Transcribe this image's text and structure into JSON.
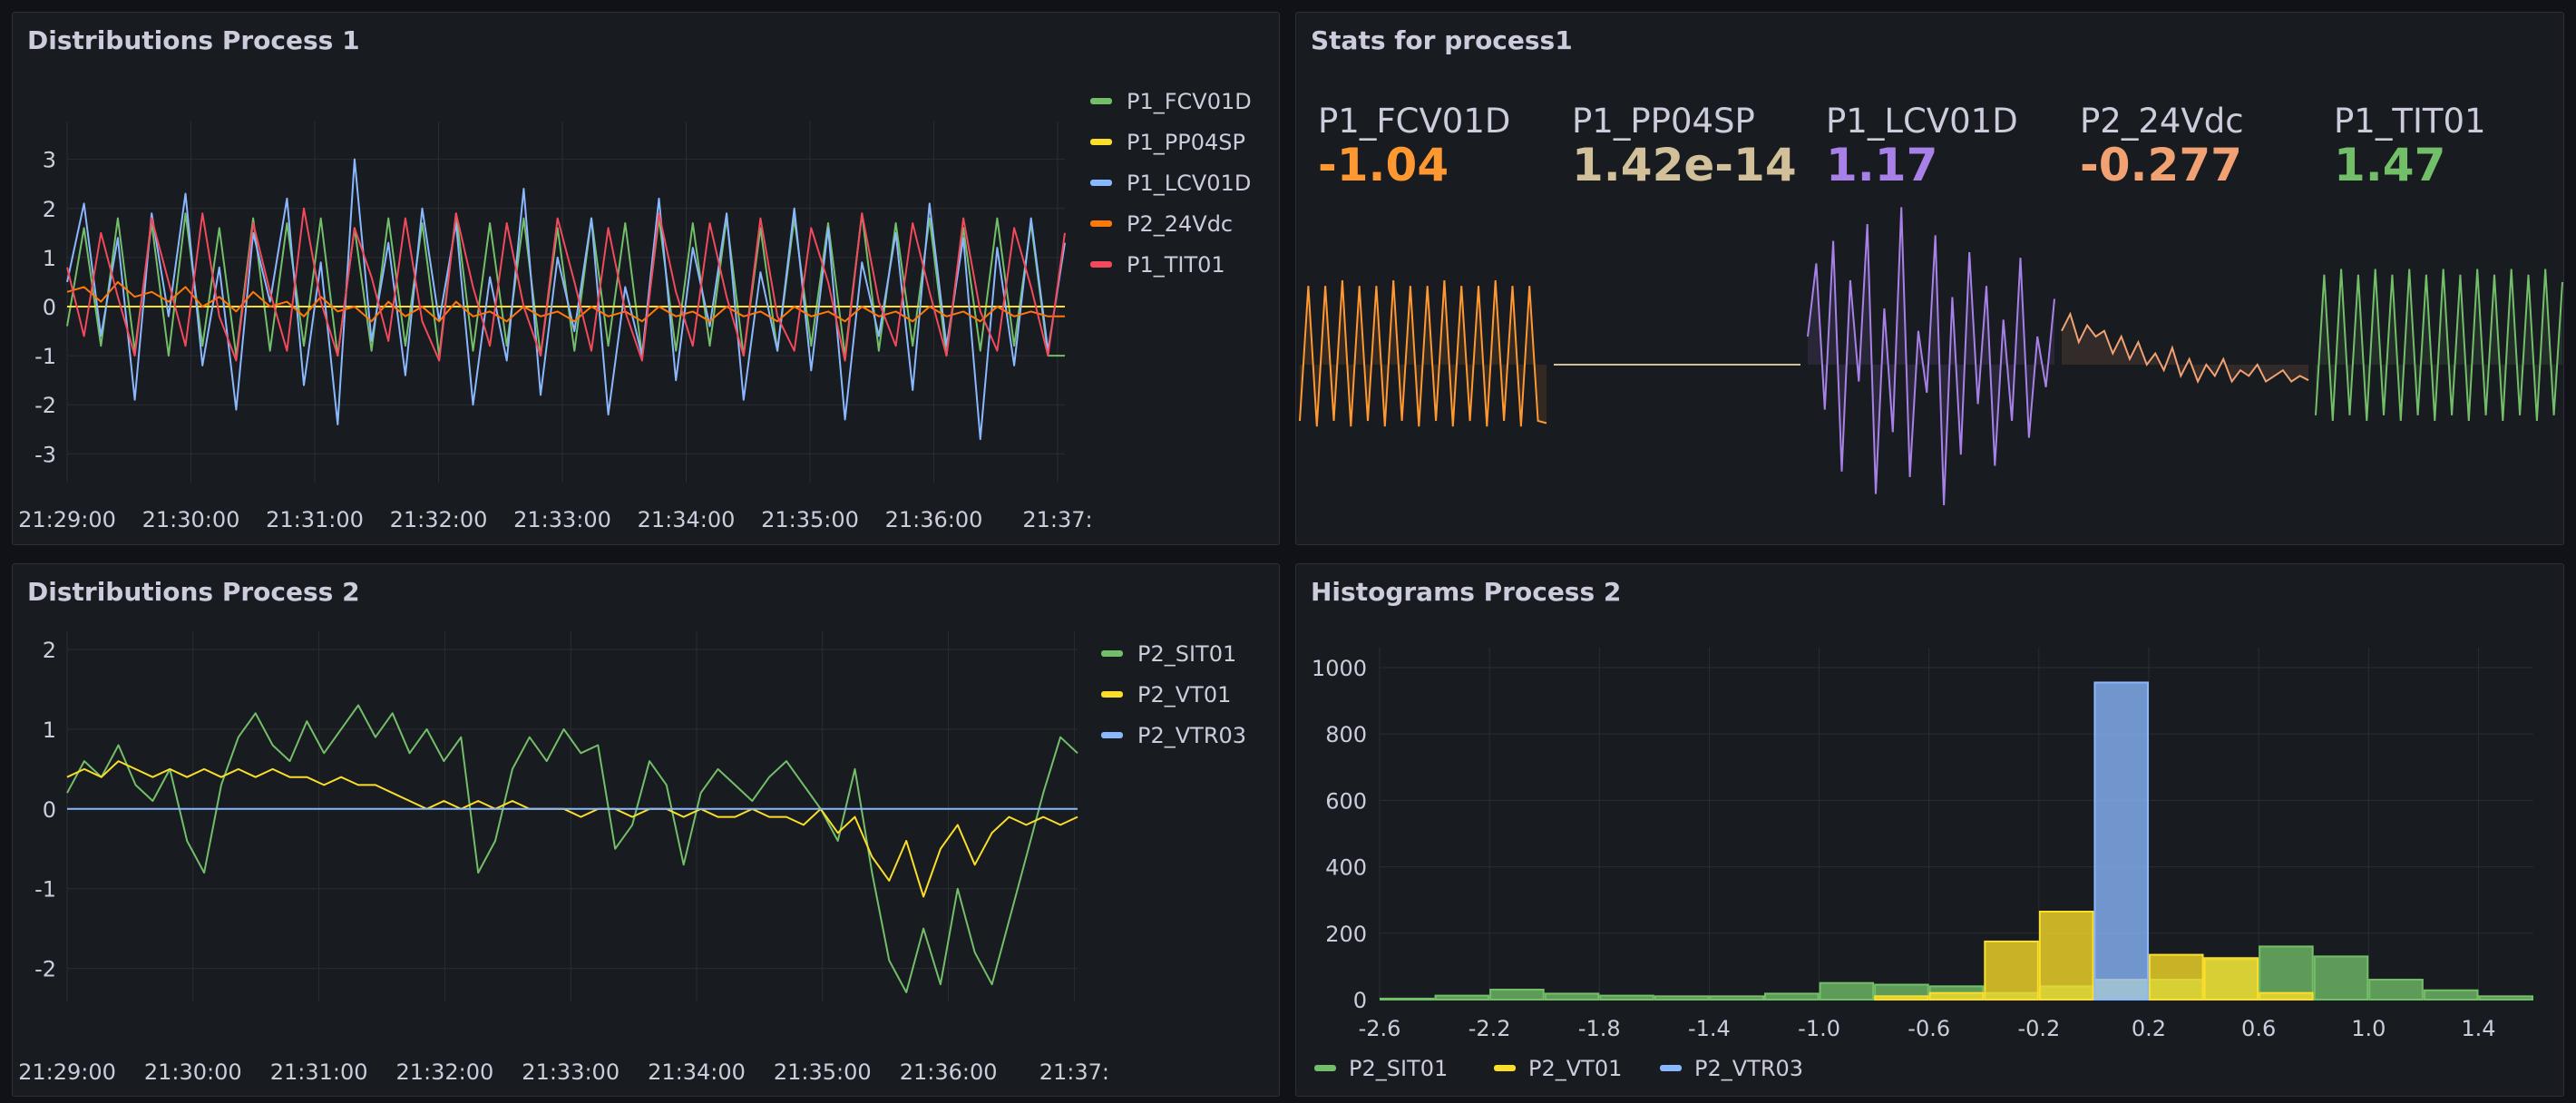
{
  "panels": {
    "p1": {
      "title": "Distributions Process 1",
      "legend": [
        {
          "name": "P1_FCV01D",
          "color": "#73bf69"
        },
        {
          "name": "P1_PP04SP",
          "color": "#fade2a"
        },
        {
          "name": "P1_LCV01D",
          "color": "#8ab8ff"
        },
        {
          "name": "P2_24Vdc",
          "color": "#ff780a"
        },
        {
          "name": "P1_TIT01",
          "color": "#f2495c"
        }
      ]
    },
    "stats": {
      "title": "Stats for process1",
      "items": [
        {
          "name": "P1_FCV01D",
          "value": "-1.04",
          "color": "#ff9830"
        },
        {
          "name": "P1_PP04SP",
          "value": "1.42e-14",
          "color": "#d1c09a"
        },
        {
          "name": "P1_LCV01D",
          "value": "1.17",
          "color": "#a781e8"
        },
        {
          "name": "P2_24Vdc",
          "value": "-0.277",
          "color": "#f2a272"
        },
        {
          "name": "P1_TIT01",
          "value": "1.47",
          "color": "#73bf69"
        }
      ]
    },
    "p2": {
      "title": "Distributions Process 2",
      "legend": [
        {
          "name": "P2_SIT01",
          "color": "#73bf69"
        },
        {
          "name": "P2_VT01",
          "color": "#fade2a"
        },
        {
          "name": "P2_VTR03",
          "color": "#8ab8ff"
        }
      ]
    },
    "hist": {
      "title": "Histograms Process 2",
      "legend": [
        {
          "name": "P2_SIT01",
          "color": "#73bf69"
        },
        {
          "name": "P2_VT01",
          "color": "#fade2a"
        },
        {
          "name": "P2_VTR03",
          "color": "#8ab8ff"
        }
      ]
    }
  },
  "chart_data": [
    {
      "type": "line",
      "title": "Distributions Process 1",
      "x_ticks": [
        "21:29:00",
        "21:30:00",
        "21:31:00",
        "21:32:00",
        "21:33:00",
        "21:34:00",
        "21:35:00",
        "21:36:00",
        "21:37:"
      ],
      "y_ticks": [
        -3,
        -2,
        -1,
        0,
        1,
        2,
        3
      ],
      "ylim": [
        -3.4,
        3.4
      ],
      "series": [
        {
          "name": "P1_FCV01D",
          "color": "#73bf69",
          "values": [
            -0.4,
            1.6,
            -0.8,
            1.8,
            -0.9,
            1.7,
            -1.0,
            1.9,
            -0.8,
            1.6,
            -1.0,
            1.8,
            -0.9,
            1.7,
            -0.8,
            1.8,
            -1.0,
            1.6,
            -0.9,
            1.8,
            -0.8,
            1.7,
            -1.0,
            1.9,
            -0.9,
            1.7,
            -0.8,
            1.8,
            -1.0,
            1.6,
            -0.9,
            1.8,
            -0.8,
            1.7,
            -1.0,
            1.8,
            -0.9,
            1.7,
            -0.8,
            1.8,
            -1.0,
            1.6,
            -0.9,
            1.8,
            -0.8,
            1.7,
            -1.0,
            1.9,
            -0.9,
            1.7,
            -0.8,
            1.8,
            -1.0,
            1.6,
            -0.9,
            1.8,
            -0.8,
            1.7,
            -1.0,
            -1.0
          ]
        },
        {
          "name": "P1_PP04SP",
          "color": "#fade2a",
          "values": [
            0,
            0,
            0,
            0,
            0,
            0,
            0,
            0,
            0,
            0,
            0,
            0,
            0,
            0,
            0,
            0,
            0,
            0,
            0,
            0,
            0,
            0,
            0,
            0,
            0,
            0,
            0,
            0,
            0,
            0,
            0,
            0,
            0,
            0,
            0,
            0,
            0,
            0,
            0,
            0,
            0,
            0,
            0,
            0,
            0,
            0,
            0,
            0,
            0,
            0,
            0,
            0,
            0,
            0,
            0,
            0,
            0,
            0,
            0,
            0
          ]
        },
        {
          "name": "P1_LCV01D",
          "color": "#8ab8ff",
          "values": [
            0.5,
            2.1,
            -0.6,
            1.4,
            -1.9,
            1.9,
            -0.2,
            2.3,
            -1.2,
            0.8,
            -2.1,
            1.5,
            0.1,
            2.2,
            -1.6,
            0.9,
            -2.4,
            3.0,
            -0.7,
            1.3,
            -1.4,
            2.0,
            -0.3,
            1.7,
            -2.0,
            0.6,
            -1.1,
            2.4,
            -1.8,
            1.0,
            -0.5,
            1.8,
            -2.2,
            0.4,
            -1.0,
            2.2,
            -1.5,
            1.2,
            -0.4,
            1.9,
            -1.9,
            0.7,
            -0.9,
            2.0,
            -1.3,
            1.6,
            -2.3,
            0.9,
            -0.6,
            1.5,
            -1.7,
            2.1,
            -0.8,
            1.4,
            -2.7,
            1.2,
            -1.2,
            1.8,
            -0.9,
            1.3
          ]
        },
        {
          "name": "P2_24Vdc",
          "color": "#ff780a",
          "values": [
            0.3,
            0.4,
            0.1,
            0.5,
            0.2,
            0.3,
            0.1,
            0.4,
            0.0,
            0.2,
            -0.1,
            0.3,
            0.0,
            0.1,
            -0.2,
            0.2,
            -0.1,
            0.0,
            -0.3,
            0.1,
            -0.2,
            0.0,
            -0.3,
            0.1,
            -0.2,
            -0.1,
            -0.3,
            0.0,
            -0.2,
            -0.1,
            -0.3,
            0.0,
            -0.2,
            -0.1,
            -0.3,
            0.0,
            -0.2,
            -0.1,
            -0.3,
            0.0,
            -0.2,
            -0.1,
            -0.3,
            0.0,
            -0.2,
            -0.1,
            -0.3,
            0.0,
            -0.2,
            -0.1,
            -0.3,
            0.0,
            -0.2,
            -0.1,
            -0.3,
            0.0,
            -0.2,
            -0.1,
            -0.2,
            -0.2
          ]
        },
        {
          "name": "P1_TIT01",
          "color": "#f2495c",
          "values": [
            0.8,
            -0.6,
            1.5,
            0.2,
            -1.0,
            1.8,
            0.5,
            -0.8,
            1.9,
            -0.2,
            -1.1,
            1.7,
            0.3,
            -0.9,
            2.0,
            0.1,
            -1.0,
            1.6,
            0.6,
            -0.7,
            1.8,
            -0.3,
            -1.1,
            1.9,
            0.4,
            -0.8,
            1.7,
            0.0,
            -1.0,
            1.8,
            0.5,
            -0.9,
            1.6,
            -0.1,
            -1.1,
            1.9,
            0.3,
            -0.8,
            1.7,
            0.2,
            -1.0,
            1.8,
            -0.2,
            -0.9,
            1.6,
            0.5,
            -1.1,
            1.9,
            0.1,
            -0.8,
            1.7,
            0.3,
            -1.0,
            1.8,
            -0.1,
            -0.9,
            1.6,
            0.4,
            -1.0,
            1.5
          ]
        }
      ]
    },
    {
      "type": "line",
      "title": "Stats for process1",
      "series": [
        {
          "name": "P1_FCV01D",
          "color": "#ff9830",
          "values": [
            -1.0,
            1.4,
            -1.1,
            1.4,
            -1.0,
            1.5,
            -1.1,
            1.4,
            -1.0,
            1.4,
            -1.1,
            1.5,
            -1.0,
            1.4,
            -1.1,
            1.4,
            -1.0,
            1.5,
            -1.1,
            1.4,
            -1.0,
            1.4,
            -1.1,
            1.5,
            -1.0,
            1.4,
            -1.1,
            1.4,
            -1.0,
            -1.04
          ]
        },
        {
          "name": "P1_PP04SP",
          "color": "#d1c09a",
          "values": [
            0,
            0,
            0,
            0,
            0,
            0,
            0,
            0,
            0,
            0,
            0,
            0,
            0,
            0,
            0,
            0,
            0,
            0,
            0,
            0,
            0,
            0,
            0,
            0,
            0,
            0,
            0,
            0,
            0,
            0
          ]
        },
        {
          "name": "P1_LCV01D",
          "color": "#a781e8",
          "values": [
            0.5,
            1.8,
            -0.8,
            2.2,
            -1.9,
            1.5,
            -0.3,
            2.5,
            -2.3,
            1.0,
            -1.2,
            2.8,
            -2.0,
            0.6,
            -0.5,
            2.3,
            -2.5,
            1.2,
            -1.6,
            2.0,
            -0.7,
            1.4,
            -1.8,
            0.8,
            -1.0,
            1.9,
            -1.3,
            0.5,
            -0.4,
            1.17
          ]
        },
        {
          "name": "P2_24Vdc",
          "color": "#f2a272",
          "values": [
            0.6,
            0.9,
            0.4,
            0.7,
            0.5,
            0.6,
            0.2,
            0.5,
            0.1,
            0.4,
            0.0,
            0.2,
            -0.1,
            0.3,
            -0.2,
            0.1,
            -0.3,
            0.0,
            -0.2,
            0.1,
            -0.3,
            -0.1,
            -0.2,
            0.0,
            -0.3,
            -0.2,
            -0.1,
            -0.3,
            -0.2,
            -0.277
          ]
        },
        {
          "name": "P1_TIT01",
          "color": "#73bf69",
          "values": [
            -0.9,
            1.6,
            -1.0,
            1.7,
            -0.9,
            1.6,
            -1.0,
            1.7,
            -0.9,
            1.6,
            -1.0,
            1.7,
            -0.9,
            1.6,
            -1.0,
            1.7,
            -0.9,
            1.6,
            -1.0,
            1.7,
            -0.9,
            1.6,
            -1.0,
            1.7,
            -0.9,
            1.6,
            -1.0,
            1.7,
            -0.9,
            1.47
          ]
        }
      ]
    },
    {
      "type": "line",
      "title": "Distributions Process 2",
      "x_ticks": [
        "21:29:00",
        "21:30:00",
        "21:31:00",
        "21:32:00",
        "21:33:00",
        "21:34:00",
        "21:35:00",
        "21:36:00",
        "21:37:"
      ],
      "y_ticks": [
        -2,
        -1,
        0,
        1,
        2
      ],
      "ylim": [
        -2.3,
        2.0
      ],
      "series": [
        {
          "name": "P2_SIT01",
          "color": "#73bf69",
          "values": [
            0.2,
            0.6,
            0.4,
            0.8,
            0.3,
            0.1,
            0.5,
            -0.4,
            -0.8,
            0.3,
            0.9,
            1.2,
            0.8,
            0.6,
            1.1,
            0.7,
            1.0,
            1.3,
            0.9,
            1.2,
            0.7,
            1.0,
            0.6,
            0.9,
            -0.8,
            -0.4,
            0.5,
            0.9,
            0.6,
            1.0,
            0.7,
            0.8,
            -0.5,
            -0.2,
            0.6,
            0.3,
            -0.7,
            0.2,
            0.5,
            0.3,
            0.1,
            0.4,
            0.6,
            0.3,
            0.0,
            -0.4,
            0.5,
            -0.8,
            -1.9,
            -2.3,
            -1.5,
            -2.2,
            -1.0,
            -1.8,
            -2.2,
            -1.4,
            -0.6,
            0.2,
            0.9,
            0.7
          ]
        },
        {
          "name": "P2_VT01",
          "color": "#fade2a",
          "values": [
            0.4,
            0.5,
            0.4,
            0.6,
            0.5,
            0.4,
            0.5,
            0.4,
            0.5,
            0.4,
            0.5,
            0.4,
            0.5,
            0.4,
            0.4,
            0.3,
            0.4,
            0.3,
            0.3,
            0.2,
            0.1,
            0.0,
            0.1,
            0.0,
            0.1,
            0.0,
            0.1,
            0.0,
            0.0,
            0.0,
            -0.1,
            0.0,
            0.0,
            -0.1,
            0.0,
            0.0,
            -0.1,
            0.0,
            -0.1,
            -0.1,
            0.0,
            -0.1,
            -0.1,
            -0.2,
            0.0,
            -0.3,
            -0.1,
            -0.6,
            -0.9,
            -0.4,
            -1.1,
            -0.5,
            -0.2,
            -0.7,
            -0.3,
            -0.1,
            -0.2,
            -0.1,
            -0.2,
            -0.1
          ]
        },
        {
          "name": "P2_VTR03",
          "color": "#8ab8ff",
          "values": [
            0,
            0,
            0,
            0,
            0,
            0,
            0,
            0,
            0,
            0,
            0,
            0,
            0,
            0,
            0,
            0,
            0,
            0,
            0,
            0,
            0,
            0,
            0,
            0,
            0,
            0,
            0,
            0,
            0,
            0,
            0,
            0,
            0,
            0,
            0,
            0,
            0,
            0,
            0,
            0,
            0,
            0,
            0,
            0,
            0,
            0,
            0,
            0,
            0,
            0,
            0,
            0,
            0,
            0,
            0,
            0,
            0,
            0,
            0,
            0
          ]
        }
      ]
    },
    {
      "type": "bar",
      "title": "Histograms Process 2",
      "x_ticks": [
        "-2.6",
        "-2.2",
        "-1.8",
        "-1.4",
        "-1.0",
        "-0.6",
        "-0.2",
        "0.2",
        "0.6",
        "1.0",
        "1.4"
      ],
      "x_tick_values": [
        -2.6,
        -2.2,
        -1.8,
        -1.4,
        -1.0,
        -0.6,
        -0.2,
        0.2,
        0.6,
        1.0,
        1.4
      ],
      "y_ticks": [
        0,
        200,
        400,
        600,
        800,
        1000
      ],
      "xlim": [
        -2.6,
        1.6
      ],
      "ylim": [
        0,
        1060
      ],
      "bin_width": 0.2,
      "series": [
        {
          "name": "P2_SIT01",
          "color": "#73bf69",
          "bins": [
            [
              -2.6,
              3
            ],
            [
              -2.4,
              12
            ],
            [
              -2.2,
              30
            ],
            [
              -2.0,
              18
            ],
            [
              -1.8,
              12
            ],
            [
              -1.6,
              10
            ],
            [
              -1.4,
              10
            ],
            [
              -1.2,
              18
            ],
            [
              -1.0,
              50
            ],
            [
              -0.8,
              45
            ],
            [
              -0.6,
              40
            ],
            [
              -0.4,
              20
            ],
            [
              -0.2,
              40
            ],
            [
              0.0,
              60
            ],
            [
              0.2,
              60
            ],
            [
              0.4,
              120
            ],
            [
              0.6,
              160
            ],
            [
              0.8,
              130
            ],
            [
              1.0,
              60
            ],
            [
              1.2,
              28
            ],
            [
              1.4,
              10
            ]
          ]
        },
        {
          "name": "P2_VT01",
          "color": "#fade2a",
          "bins": [
            [
              -0.8,
              10
            ],
            [
              -0.6,
              20
            ],
            [
              -0.4,
              175
            ],
            [
              -0.2,
              265
            ],
            [
              0.0,
              60
            ],
            [
              0.2,
              135
            ],
            [
              0.4,
              125
            ],
            [
              0.6,
              20
            ]
          ]
        },
        {
          "name": "P2_VTR03",
          "color": "#8ab8ff",
          "bins": [
            [
              0.0,
              955
            ]
          ]
        }
      ]
    }
  ]
}
